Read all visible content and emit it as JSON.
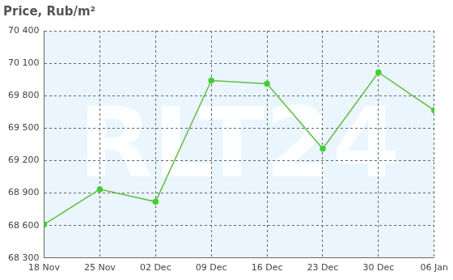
{
  "chart_data": {
    "type": "line",
    "title": "Price, Rub/m²",
    "watermark": "RLT24",
    "categories": [
      "18 Nov",
      "25 Nov",
      "02 Dec",
      "09 Dec",
      "16 Dec",
      "23 Dec",
      "30 Dec",
      "06 Jan"
    ],
    "values": [
      68610,
      68935,
      68820,
      69940,
      69910,
      69310,
      70015,
      69665
    ],
    "color": "#66bb44",
    "marker": "circle",
    "line_style": "solid",
    "ylim": [
      68300,
      70400
    ],
    "yticks": [
      {
        "value": 68300,
        "label": "68 300"
      },
      {
        "value": 68600,
        "label": "68 600"
      },
      {
        "value": 68900,
        "label": "68 900"
      },
      {
        "value": 69200,
        "label": "69 200"
      },
      {
        "value": 69500,
        "label": "69 500"
      },
      {
        "value": 69800,
        "label": "69 800"
      },
      {
        "value": 70100,
        "label": "70 100"
      },
      {
        "value": 70400,
        "label": "70 400"
      }
    ],
    "grid": true,
    "data_labels": false
  }
}
